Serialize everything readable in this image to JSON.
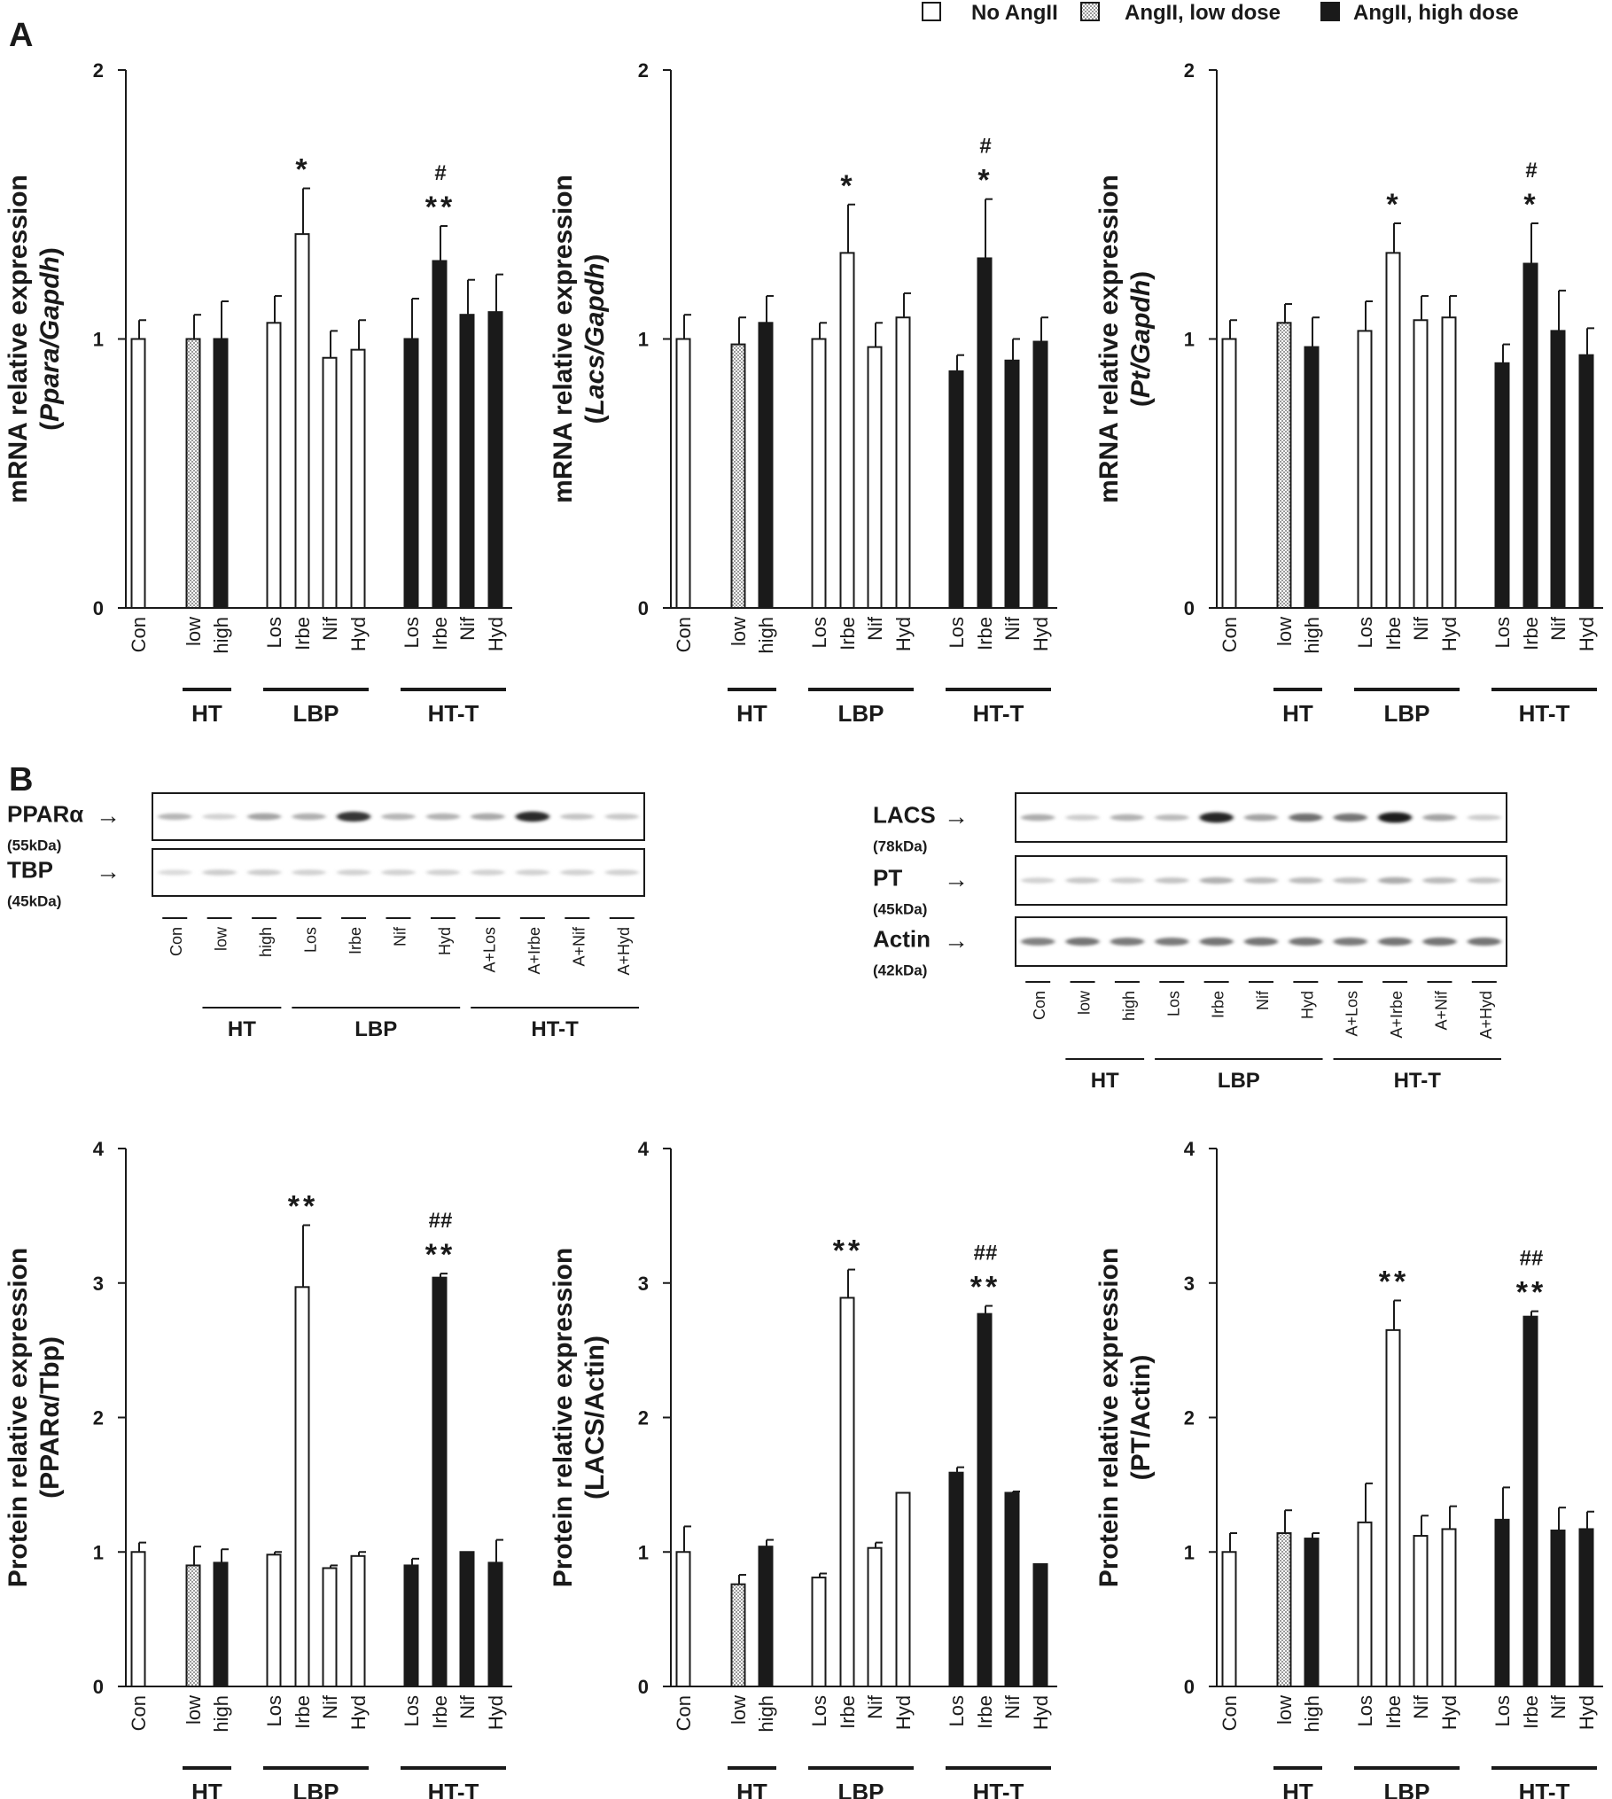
{
  "legend": {
    "none": "No AngII",
    "low": "AngII, low dose",
    "high": "AngII, high dose"
  },
  "panel_labels": [
    "A",
    "B"
  ],
  "colors": {
    "none": "#ffffff",
    "high": "#1a1a1a",
    "low": "#bdbdbd",
    "ink": "#1a1a1a"
  },
  "groups": [
    "HT",
    "LBP",
    "HT-T"
  ],
  "blots": {
    "left": {
      "bands": [
        {
          "label": "PPARα",
          "sub": "(55kDa)",
          "intensity": [
            0.32,
            0.2,
            0.4,
            0.35,
            0.88,
            0.32,
            0.34,
            0.38,
            0.92,
            0.26,
            0.24
          ]
        },
        {
          "label": "TBP",
          "sub": "(45kDa)",
          "intensity": [
            0.16,
            0.22,
            0.22,
            0.2,
            0.2,
            0.2,
            0.2,
            0.2,
            0.2,
            0.2,
            0.2
          ]
        }
      ],
      "lanes": [
        "Con",
        "low",
        "high",
        "Los",
        "Irbe",
        "Nif",
        "Hyd",
        "A+Los",
        "A+Irbe",
        "A+Nif",
        "A+Hyd"
      ]
    },
    "right": {
      "bands": [
        {
          "label": "LACS",
          "sub": "(78kDa)",
          "intensity": [
            0.36,
            0.22,
            0.34,
            0.3,
            0.95,
            0.4,
            0.62,
            0.6,
            0.98,
            0.4,
            0.22
          ]
        },
        {
          "label": "PT",
          "sub": "(45kDa)",
          "intensity": [
            0.2,
            0.24,
            0.22,
            0.26,
            0.34,
            0.3,
            0.3,
            0.28,
            0.36,
            0.3,
            0.26
          ]
        },
        {
          "label": "Actin",
          "sub": "(42kDa)",
          "intensity": [
            0.55,
            0.6,
            0.58,
            0.58,
            0.6,
            0.6,
            0.6,
            0.58,
            0.6,
            0.6,
            0.6
          ]
        }
      ],
      "lanes": [
        "Con",
        "low",
        "high",
        "Los",
        "Irbe",
        "Nif",
        "Hyd",
        "A+Los",
        "A+Irbe",
        "A+Nif",
        "A+Hyd"
      ]
    }
  },
  "chart_data": [
    {
      "type": "bar",
      "ylabel": "mRNA relative expression",
      "ylabel2": [
        "(",
        "Ppara/Gapdh",
        ")"
      ],
      "ylim": [
        0,
        2
      ],
      "yticks": [
        0,
        1,
        2
      ],
      "categories": [
        "Con",
        "low",
        "high",
        "Los",
        "Irbe",
        "Nif",
        "Hyd",
        "Los",
        "Irbe",
        "Nif",
        "Hyd"
      ],
      "values": [
        1.0,
        1.0,
        1.0,
        1.06,
        1.39,
        0.93,
        0.96,
        1.0,
        1.29,
        1.09,
        1.1
      ],
      "errors": [
        0.07,
        0.09,
        0.14,
        0.1,
        0.17,
        0.1,
        0.11,
        0.15,
        0.13,
        0.13,
        0.14
      ],
      "fills": [
        "none",
        "low",
        "high",
        "none",
        "none",
        "none",
        "none",
        "high",
        "high",
        "high",
        "high"
      ],
      "stars": [
        "",
        "",
        "",
        "",
        "*",
        "",
        "",
        "",
        "**",
        "",
        ""
      ],
      "hashes": [
        "",
        "",
        "",
        "",
        "",
        "",
        "",
        "",
        "#",
        "",
        ""
      ]
    },
    {
      "type": "bar",
      "ylabel": "mRNA relative expression",
      "ylabel2": [
        "(",
        "Lacs/Gapdh",
        ")"
      ],
      "ylim": [
        0,
        2
      ],
      "yticks": [
        0,
        1,
        2
      ],
      "categories": [
        "Con",
        "low",
        "high",
        "Los",
        "Irbe",
        "Nif",
        "Hyd",
        "Los",
        "Irbe",
        "Nif",
        "Hyd"
      ],
      "values": [
        1.0,
        0.98,
        1.06,
        1.0,
        1.32,
        0.97,
        1.08,
        0.88,
        1.3,
        0.92,
        0.99
      ],
      "errors": [
        0.09,
        0.1,
        0.1,
        0.06,
        0.18,
        0.09,
        0.09,
        0.06,
        0.22,
        0.08,
        0.09
      ],
      "fills": [
        "none",
        "low",
        "high",
        "none",
        "none",
        "none",
        "none",
        "high",
        "high",
        "high",
        "high"
      ],
      "stars": [
        "",
        "",
        "",
        "",
        "*",
        "",
        "",
        "",
        "*",
        "",
        ""
      ],
      "hashes": [
        "",
        "",
        "",
        "",
        "",
        "",
        "",
        "",
        "#",
        "",
        ""
      ]
    },
    {
      "type": "bar",
      "ylabel": "mRNA relative expression",
      "ylabel2": [
        "(",
        "Pt/Gapdh",
        ")"
      ],
      "ylim": [
        0,
        2
      ],
      "yticks": [
        0,
        1,
        2
      ],
      "categories": [
        "Con",
        "low",
        "high",
        "Los",
        "Irbe",
        "Nif",
        "Hyd",
        "Los",
        "Irbe",
        "Nif",
        "Hyd"
      ],
      "values": [
        1.0,
        1.06,
        0.97,
        1.03,
        1.32,
        1.07,
        1.08,
        0.91,
        1.28,
        1.03,
        0.94
      ],
      "errors": [
        0.07,
        0.07,
        0.11,
        0.11,
        0.11,
        0.09,
        0.08,
        0.07,
        0.15,
        0.15,
        0.1
      ],
      "fills": [
        "none",
        "low",
        "high",
        "none",
        "none",
        "none",
        "none",
        "high",
        "high",
        "high",
        "high"
      ],
      "stars": [
        "",
        "",
        "",
        "",
        "*",
        "",
        "",
        "",
        "*",
        "",
        ""
      ],
      "hashes": [
        "",
        "",
        "",
        "",
        "",
        "",
        "",
        "",
        "#",
        "",
        ""
      ]
    },
    {
      "type": "bar",
      "ylabel": "Protein relative expression",
      "ylabel2": [
        "",
        "(PPARα/Tbp)",
        ""
      ],
      "ylim": [
        0,
        4
      ],
      "yticks": [
        0,
        1,
        2,
        3,
        4
      ],
      "categories": [
        "Con",
        "low",
        "high",
        "Los",
        "Irbe",
        "Nif",
        "Hyd",
        "Los",
        "Irbe",
        "Nif",
        "Hyd"
      ],
      "values": [
        1.0,
        0.9,
        0.92,
        0.98,
        2.97,
        0.88,
        0.97,
        0.9,
        3.04,
        1.0,
        0.92
      ],
      "errors": [
        0.07,
        0.14,
        0.1,
        0.02,
        0.46,
        0.02,
        0.03,
        0.05,
        0.03,
        0.0,
        0.17
      ],
      "fills": [
        "none",
        "low",
        "high",
        "none",
        "none",
        "none",
        "none",
        "high",
        "high",
        "high",
        "high"
      ],
      "stars": [
        "",
        "",
        "",
        "",
        "**",
        "",
        "",
        "",
        "**",
        "",
        ""
      ],
      "hashes": [
        "",
        "",
        "",
        "",
        "",
        "",
        "",
        "",
        "##",
        "",
        ""
      ]
    },
    {
      "type": "bar",
      "ylabel": "Protein relative expression",
      "ylabel2": [
        "",
        "(LACS/Actin)",
        ""
      ],
      "ylim": [
        0,
        4
      ],
      "yticks": [
        0,
        1,
        2,
        3,
        4
      ],
      "categories": [
        "Con",
        "low",
        "high",
        "Los",
        "Irbe",
        "Nif",
        "Hyd",
        "Los",
        "Irbe",
        "Nif",
        "Hyd"
      ],
      "values": [
        1.0,
        0.76,
        1.04,
        0.81,
        2.89,
        1.03,
        1.44,
        1.59,
        2.77,
        1.44,
        0.91
      ],
      "errors": [
        0.19,
        0.07,
        0.05,
        0.03,
        0.21,
        0.04,
        0.0,
        0.04,
        0.06,
        0.01,
        0.0
      ],
      "fills": [
        "none",
        "low",
        "high",
        "none",
        "none",
        "none",
        "none",
        "high",
        "high",
        "high",
        "high"
      ],
      "stars": [
        "",
        "",
        "",
        "",
        "**",
        "",
        "",
        "",
        "**",
        "",
        ""
      ],
      "hashes": [
        "",
        "",
        "",
        "",
        "",
        "",
        "",
        "",
        "##",
        "",
        ""
      ]
    },
    {
      "type": "bar",
      "ylabel": "Protein relative expression",
      "ylabel2": [
        "",
        "(PT/Actin)",
        ""
      ],
      "ylim": [
        0,
        4
      ],
      "yticks": [
        0,
        1,
        2,
        3,
        4
      ],
      "categories": [
        "Con",
        "low",
        "high",
        "Los",
        "Irbe",
        "Nif",
        "Hyd",
        "Los",
        "Irbe",
        "Nif",
        "Hyd"
      ],
      "values": [
        1.0,
        1.14,
        1.1,
        1.22,
        2.65,
        1.12,
        1.17,
        1.24,
        2.75,
        1.16,
        1.17
      ],
      "errors": [
        0.14,
        0.17,
        0.04,
        0.29,
        0.22,
        0.15,
        0.17,
        0.24,
        0.04,
        0.17,
        0.13
      ],
      "fills": [
        "none",
        "low",
        "high",
        "none",
        "none",
        "none",
        "none",
        "high",
        "high",
        "high",
        "high"
      ],
      "stars": [
        "",
        "",
        "",
        "",
        "**",
        "",
        "",
        "",
        "**",
        "",
        ""
      ],
      "hashes": [
        "",
        "",
        "",
        "",
        "",
        "",
        "",
        "",
        "##",
        "",
        ""
      ]
    }
  ]
}
